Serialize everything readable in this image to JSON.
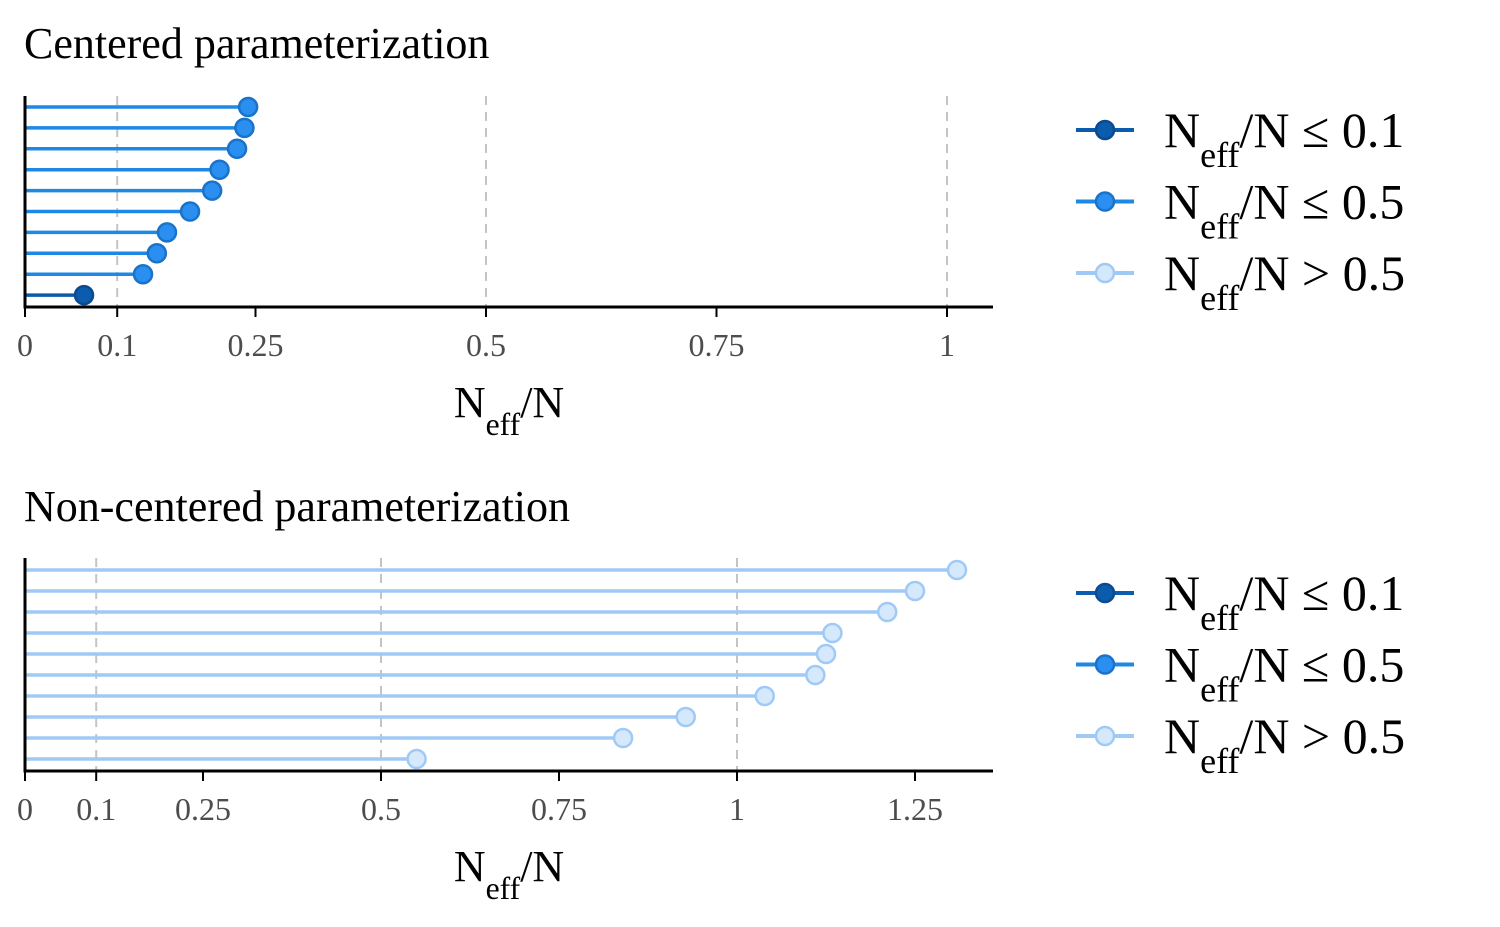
{
  "axis_label": {
    "main": "N",
    "sub": "eff",
    "rest": "/N"
  },
  "legend": [
    {
      "main": "N",
      "sub": "eff",
      "rest": "/N ≤ 0.1",
      "color": "#0b5cad",
      "fill": "#0b5cad",
      "edge": "#0b4a8f"
    },
    {
      "main": "N",
      "sub": "eff",
      "rest": "/N ≤ 0.5",
      "color": "#1e88e5",
      "fill": "#2a8ff0",
      "edge": "#1a73c9"
    },
    {
      "main": "N",
      "sub": "eff",
      "rest": "/N > 0.5",
      "color": "#9fcaf5",
      "fill": "#d6e9fc",
      "edge": "#9fcaf5"
    }
  ],
  "chart_data": [
    {
      "type": "lollipop",
      "title": "Centered parameterization",
      "xlabel": "Neff/N",
      "xlim": [
        0,
        1.05
      ],
      "xticks": [
        0,
        0.1,
        0.25,
        0.5,
        0.75,
        1
      ],
      "xtick_labels": [
        "0",
        "0.1",
        "0.25",
        "0.5",
        "0.75",
        "1"
      ],
      "dashed_gridlines": [
        0.1,
        0.5,
        1
      ],
      "values": [
        0.242,
        0.238,
        0.23,
        0.211,
        0.203,
        0.179,
        0.154,
        0.143,
        0.128,
        0.064
      ],
      "categories": [
        "≤ 0.5",
        "≤ 0.5",
        "≤ 0.5",
        "≤ 0.5",
        "≤ 0.5",
        "≤ 0.5",
        "≤ 0.5",
        "≤ 0.5",
        "≤ 0.5",
        "≤ 0.1"
      ]
    },
    {
      "type": "lollipop",
      "title": "Non-centered parameterization",
      "xlabel": "Neff/N",
      "xlim": [
        0,
        1.36
      ],
      "xticks": [
        0,
        0.1,
        0.25,
        0.5,
        0.75,
        1,
        1.25
      ],
      "xtick_labels": [
        "0",
        "0.1",
        "0.25",
        "0.5",
        "0.75",
        "1",
        "1.25"
      ],
      "dashed_gridlines": [
        0.1,
        0.5,
        1
      ],
      "values": [
        1.309,
        1.25,
        1.211,
        1.134,
        1.125,
        1.11,
        1.039,
        0.928,
        0.84,
        0.55
      ],
      "categories": [
        "> 0.5",
        "> 0.5",
        "> 0.5",
        "> 0.5",
        "> 0.5",
        "> 0.5",
        "> 0.5",
        "> 0.5",
        "> 0.5",
        "> 0.5"
      ]
    }
  ]
}
